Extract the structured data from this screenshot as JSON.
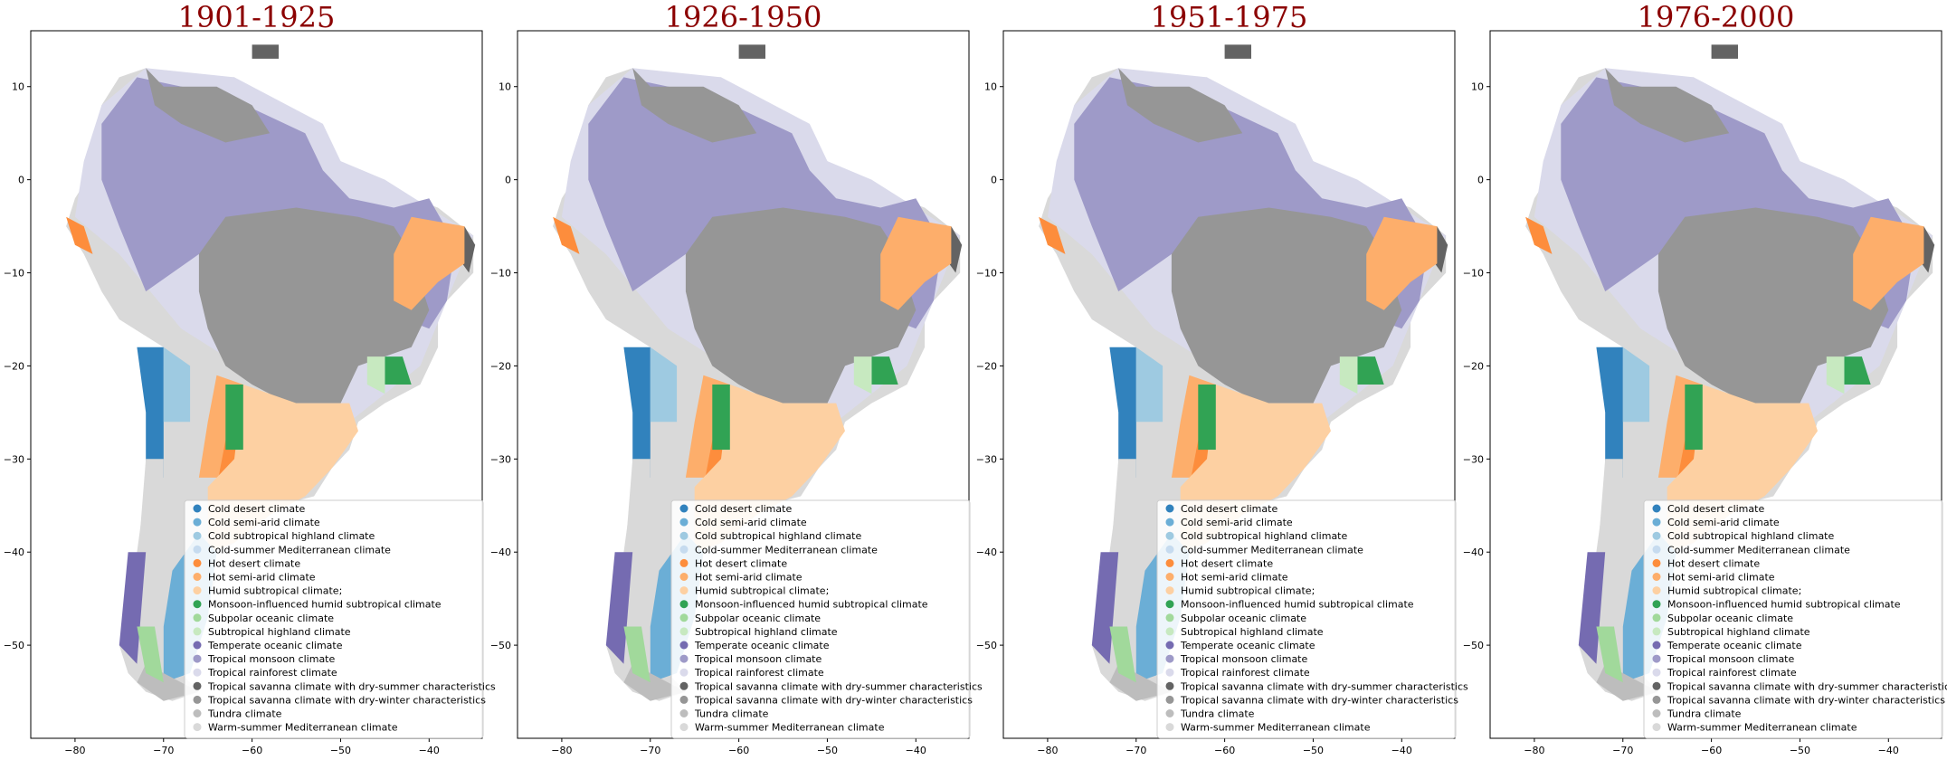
{
  "chart_data": [
    {
      "type": "map",
      "title": "1901-1925",
      "xlim": [
        -85,
        -34
      ],
      "ylim": [
        -60,
        16
      ],
      "xticks": [
        -80,
        -70,
        -60,
        -50,
        -40
      ],
      "yticks": [
        10,
        0,
        -10,
        -20,
        -30,
        -40,
        -50
      ],
      "xtick_labels": [
        "−80",
        "−70",
        "−60",
        "−50",
        "−40"
      ],
      "ytick_labels": [
        "10",
        "0",
        "−10",
        "−20",
        "−30",
        "−40",
        "−50"
      ],
      "legend_position": "lower-right",
      "grid": false
    },
    {
      "type": "map",
      "title": "1926-1950",
      "xlim": [
        -85,
        -34
      ],
      "ylim": [
        -60,
        16
      ],
      "xticks": [
        -80,
        -70,
        -60,
        -50,
        -40
      ],
      "yticks": [
        10,
        0,
        -10,
        -20,
        -30,
        -40,
        -50
      ],
      "xtick_labels": [
        "−80",
        "−70",
        "−60",
        "−50",
        "−40"
      ],
      "ytick_labels": [
        "10",
        "0",
        "−10",
        "−20",
        "−30",
        "−40",
        "−50"
      ],
      "legend_position": "lower-right",
      "grid": false
    },
    {
      "type": "map",
      "title": "1951-1975",
      "xlim": [
        -85,
        -34
      ],
      "ylim": [
        -60,
        16
      ],
      "xticks": [
        -80,
        -70,
        -60,
        -50,
        -40
      ],
      "yticks": [
        10,
        0,
        -10,
        -20,
        -30,
        -40,
        -50
      ],
      "xtick_labels": [
        "−80",
        "−70",
        "−60",
        "−50",
        "−40"
      ],
      "ytick_labels": [
        "10",
        "0",
        "−10",
        "−20",
        "−30",
        "−40",
        "−50"
      ],
      "legend_position": "lower-right",
      "grid": false
    },
    {
      "type": "map",
      "title": "1976-2000",
      "xlim": [
        -85,
        -34
      ],
      "ylim": [
        -60,
        16
      ],
      "xticks": [
        -80,
        -70,
        -60,
        -50,
        -40
      ],
      "yticks": [
        10,
        0,
        -10,
        -20,
        -30,
        -40,
        -50
      ],
      "xtick_labels": [
        "−80",
        "−70",
        "−60",
        "−50",
        "−40"
      ],
      "ytick_labels": [
        "10",
        "0",
        "−10",
        "−20",
        "−30",
        "−40",
        "−50"
      ],
      "legend_position": "lower-right",
      "grid": false
    }
  ],
  "legend": [
    {
      "label": "Cold desert climate",
      "color": "#3182bd"
    },
    {
      "label": "Cold semi-arid climate",
      "color": "#6baed6"
    },
    {
      "label": "Cold subtropical highland climate",
      "color": "#9ecae1"
    },
    {
      "label": "Cold-summer Mediterranean climate",
      "color": "#c6dbef"
    },
    {
      "label": "Hot desert climate",
      "color": "#fd8d3c"
    },
    {
      "label": "Hot semi-arid climate",
      "color": "#fdae6b"
    },
    {
      "label": "Humid subtropical climate;",
      "color": "#fdd0a2"
    },
    {
      "label": "Monsoon-influenced humid subtropical climate",
      "color": "#31a354"
    },
    {
      "label": "Subpolar oceanic climate",
      "color": "#a1d99b"
    },
    {
      "label": "Subtropical highland climate",
      "color": "#c7e9c0"
    },
    {
      "label": "Temperate oceanic climate",
      "color": "#756bb1"
    },
    {
      "label": "Tropical monsoon climate",
      "color": "#9e9ac8"
    },
    {
      "label": "Tropical rainforest climate",
      "color": "#dadaeb"
    },
    {
      "label": "Tropical savanna climate with dry-summer characteristics",
      "color": "#636363"
    },
    {
      "label": "Tropical savanna climate with dry-winter characteristics",
      "color": "#969696"
    },
    {
      "label": "Tundra climate",
      "color": "#bdbdbd"
    },
    {
      "label": "Warm-summer Mediterranean climate",
      "color": "#d9d9d9"
    }
  ],
  "regions": [
    {
      "label": "Tropical rainforest climate",
      "color": "#dadaeb",
      "points": [
        [
          -72,
          12
        ],
        [
          -62,
          11
        ],
        [
          -52,
          6
        ],
        [
          -50,
          2
        ],
        [
          -45,
          0
        ],
        [
          -35,
          -6
        ],
        [
          -41,
          -20
        ],
        [
          -49,
          -26
        ],
        [
          -58,
          -22
        ],
        [
          -68,
          -16
        ],
        [
          -75,
          -8
        ],
        [
          -80,
          -4
        ],
        [
          -79,
          2
        ],
        [
          -77,
          8
        ]
      ]
    },
    {
      "label": "Tropical monsoon climate",
      "color": "#9e9ac8",
      "points": [
        [
          -73,
          11
        ],
        [
          -63,
          9
        ],
        [
          -54,
          5
        ],
        [
          -52,
          1
        ],
        [
          -49,
          -2
        ],
        [
          -44,
          -3
        ],
        [
          -40,
          -2
        ],
        [
          -37,
          -7
        ],
        [
          -38,
          -13
        ],
        [
          -40,
          -16
        ],
        [
          -51,
          -12
        ],
        [
          -58,
          -9
        ],
        [
          -66,
          -8
        ],
        [
          -72,
          -12
        ],
        [
          -75,
          -5
        ],
        [
          -77,
          0
        ],
        [
          -77,
          6
        ]
      ]
    },
    {
      "label": "Tropical savanna climate with dry-winter characteristics",
      "color": "#969696",
      "points": [
        [
          -72,
          12
        ],
        [
          -70,
          10
        ],
        [
          -64,
          10
        ],
        [
          -60,
          8
        ],
        [
          -58,
          5
        ],
        [
          -63,
          4
        ],
        [
          -68,
          6
        ],
        [
          -71,
          8
        ]
      ]
    },
    {
      "label": "Tropical savanna climate with dry-winter characteristics",
      "color": "#969696",
      "points": [
        [
          -63,
          -4
        ],
        [
          -55,
          -3
        ],
        [
          -48,
          -4
        ],
        [
          -44,
          -5
        ],
        [
          -42,
          -8
        ],
        [
          -40,
          -14
        ],
        [
          -42,
          -18
        ],
        [
          -48,
          -20
        ],
        [
          -50,
          -24
        ],
        [
          -56,
          -24
        ],
        [
          -60,
          -22
        ],
        [
          -63,
          -20
        ],
        [
          -65,
          -16
        ],
        [
          -66,
          -12
        ],
        [
          -66,
          -8
        ]
      ]
    },
    {
      "label": "Tropical savanna climate with dry-summer characteristics",
      "color": "#636363",
      "points": [
        [
          -36,
          -5
        ],
        [
          -34.8,
          -7
        ],
        [
          -35.5,
          -10
        ],
        [
          -37,
          -8
        ]
      ]
    },
    {
      "label": "Tropical savanna climate with dry-summer characteristics",
      "color": "#636363",
      "points": [
        [
          -60,
          14.5
        ],
        [
          -57,
          14.5
        ],
        [
          -57,
          13
        ],
        [
          -60,
          13
        ]
      ]
    },
    {
      "label": "Hot semi-arid climate",
      "color": "#fdae6b",
      "points": [
        [
          -42,
          -4
        ],
        [
          -36,
          -5
        ],
        [
          -36,
          -9
        ],
        [
          -39,
          -11
        ],
        [
          -42,
          -14
        ],
        [
          -44,
          -13
        ],
        [
          -44,
          -8
        ]
      ]
    },
    {
      "label": "Hot semi-arid climate",
      "color": "#fdae6b",
      "points": [
        [
          -64,
          -21
        ],
        [
          -61,
          -22
        ],
        [
          -61,
          -30
        ],
        [
          -63,
          -32
        ],
        [
          -66,
          -32
        ],
        [
          -65,
          -26
        ]
      ]
    },
    {
      "label": "Hot desert climate",
      "color": "#fd8d3c",
      "points": [
        [
          -81,
          -4
        ],
        [
          -79,
          -5
        ],
        [
          -78,
          -8
        ],
        [
          -80,
          -7
        ]
      ]
    },
    {
      "label": "Hot desert climate",
      "color": "#fd8d3c",
      "points": [
        [
          -63,
          -28
        ],
        [
          -61,
          -28
        ],
        [
          -62,
          -33
        ],
        [
          -64,
          -33
        ]
      ]
    },
    {
      "label": "Humid subtropical climate;",
      "color": "#fdd0a2",
      "points": [
        [
          -61,
          -22
        ],
        [
          -55,
          -24
        ],
        [
          -49,
          -24
        ],
        [
          -48,
          -27
        ],
        [
          -51,
          -31
        ],
        [
          -54,
          -34
        ],
        [
          -58,
          -36
        ],
        [
          -62,
          -39
        ],
        [
          -65,
          -40
        ],
        [
          -65,
          -33
        ],
        [
          -62,
          -30
        ]
      ]
    },
    {
      "label": "Monsoon-influenced humid subtropical climate",
      "color": "#31a354",
      "points": [
        [
          -63,
          -22
        ],
        [
          -61,
          -22
        ],
        [
          -61,
          -29
        ],
        [
          -63,
          -29
        ]
      ]
    },
    {
      "label": "Monsoon-influenced humid subtropical climate",
      "color": "#31a354",
      "points": [
        [
          -45,
          -19
        ],
        [
          -43,
          -19
        ],
        [
          -42,
          -22
        ],
        [
          -45,
          -22
        ]
      ]
    },
    {
      "label": "Subtropical highland climate",
      "color": "#c7e9c0",
      "points": [
        [
          -47,
          -19
        ],
        [
          -45,
          -19
        ],
        [
          -45,
          -23
        ],
        [
          -47,
          -22
        ]
      ]
    },
    {
      "label": "Cold desert climate",
      "color": "#3182bd",
      "points": [
        [
          -73,
          -18
        ],
        [
          -70,
          -18
        ],
        [
          -70,
          -32
        ],
        [
          -72,
          -32
        ],
        [
          -72,
          -25
        ]
      ]
    },
    {
      "label": "Cold semi-arid climate",
      "color": "#6baed6",
      "points": [
        [
          -66,
          -38
        ],
        [
          -64,
          -40
        ],
        [
          -65,
          -47
        ],
        [
          -67,
          -53
        ],
        [
          -70,
          -54
        ],
        [
          -70,
          -48
        ],
        [
          -69,
          -42
        ]
      ]
    },
    {
      "label": "Cold subtropical highland climate",
      "color": "#9ecae1",
      "points": [
        [
          -70,
          -18
        ],
        [
          -67,
          -20
        ],
        [
          -67,
          -26
        ],
        [
          -70,
          -26
        ]
      ]
    },
    {
      "label": "Warm-summer Mediterranean climate",
      "color": "#d9d9d9",
      "points": [
        [
          -72,
          -30
        ],
        [
          -70,
          -30
        ],
        [
          -70,
          -42
        ],
        [
          -73,
          -42
        ]
      ]
    },
    {
      "label": "Tundra climate",
      "color": "#bdbdbd",
      "points": [
        [
          -72,
          -52
        ],
        [
          -68,
          -54
        ],
        [
          -66,
          -55
        ],
        [
          -70,
          -56
        ],
        [
          -73,
          -54
        ]
      ]
    },
    {
      "label": "Temperate oceanic climate",
      "color": "#756bb1",
      "points": [
        [
          -74,
          -40
        ],
        [
          -72,
          -40
        ],
        [
          -73,
          -52
        ],
        [
          -75,
          -50
        ]
      ]
    },
    {
      "label": "Subpolar oceanic climate",
      "color": "#a1d99b",
      "points": [
        [
          -73,
          -48
        ],
        [
          -71,
          -48
        ],
        [
          -70,
          -54
        ],
        [
          -72,
          -53
        ]
      ]
    }
  ],
  "outline": [
    [
      -72,
      12
    ],
    [
      -66,
      11
    ],
    [
      -62,
      11
    ],
    [
      -57,
      7
    ],
    [
      -52,
      5
    ],
    [
      -50,
      2
    ],
    [
      -45,
      -1
    ],
    [
      -39,
      -3
    ],
    [
      -35,
      -6
    ],
    [
      -35,
      -10
    ],
    [
      -39,
      -14
    ],
    [
      -39,
      -18
    ],
    [
      -41,
      -22
    ],
    [
      -45,
      -24
    ],
    [
      -48,
      -26
    ],
    [
      -49,
      -29
    ],
    [
      -51,
      -31
    ],
    [
      -53,
      -34
    ],
    [
      -57,
      -35
    ],
    [
      -59,
      -37
    ],
    [
      -62,
      -39
    ],
    [
      -65,
      -41
    ],
    [
      -64,
      -43
    ],
    [
      -65,
      -45
    ],
    [
      -66,
      -47
    ],
    [
      -67,
      -49
    ],
    [
      -69,
      -51
    ],
    [
      -68,
      -53
    ],
    [
      -66,
      -55
    ],
    [
      -69,
      -56
    ],
    [
      -72,
      -55
    ],
    [
      -74,
      -53
    ],
    [
      -75,
      -50
    ],
    [
      -74,
      -45
    ],
    [
      -73,
      -40
    ],
    [
      -72,
      -33
    ],
    [
      -71,
      -28
    ],
    [
      -70,
      -18
    ],
    [
      -75,
      -15
    ],
    [
      -77,
      -12
    ],
    [
      -79,
      -8
    ],
    [
      -81,
      -5
    ],
    [
      -80,
      -2
    ],
    [
      -78,
      1
    ],
    [
      -77,
      5
    ],
    [
      -77,
      8
    ],
    [
      -75,
      11
    ]
  ]
}
